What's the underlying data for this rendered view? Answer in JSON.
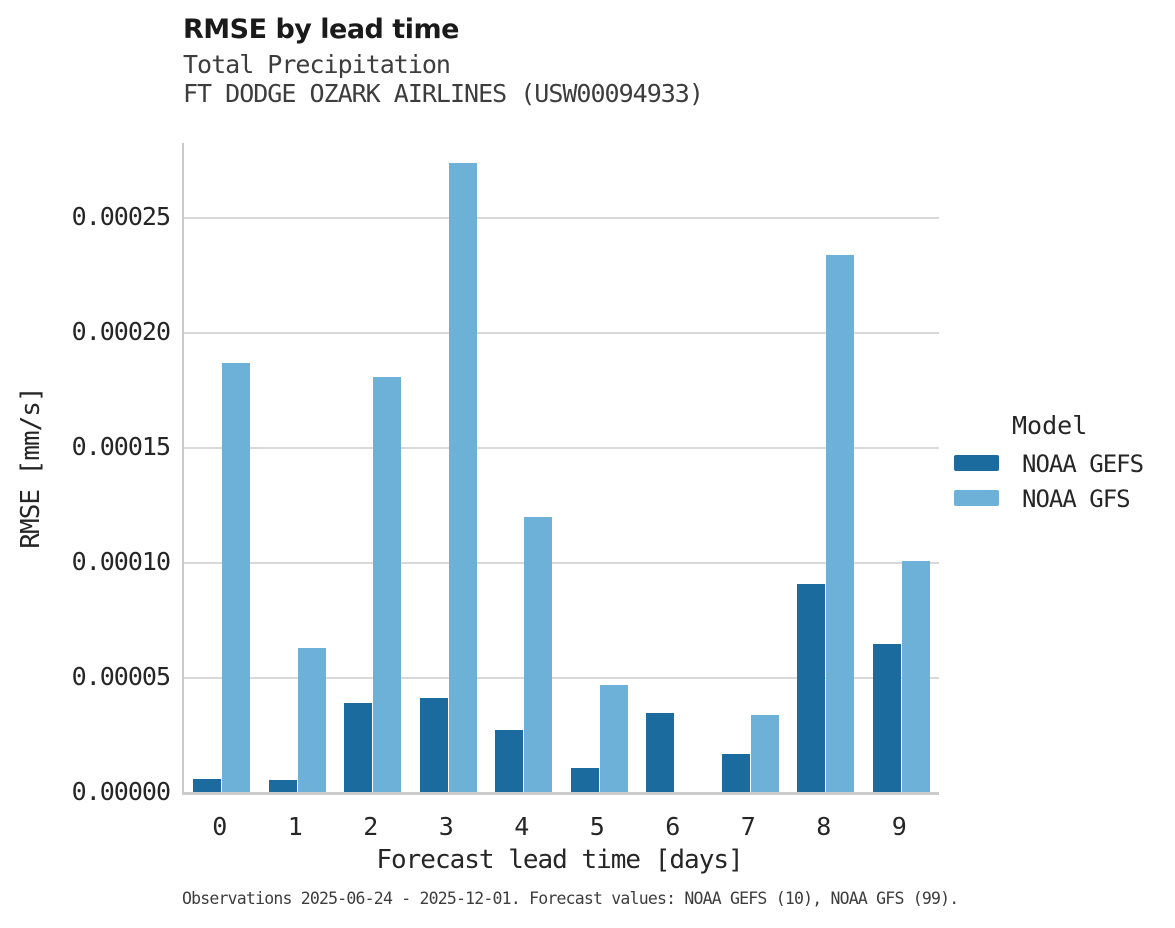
{
  "header": {
    "title": "RMSE by lead time",
    "subtitle1": "Total Precipitation",
    "subtitle2": "FT DODGE OZARK AIRLINES (USW00094933)"
  },
  "legend": {
    "title": "Model",
    "items": [
      {
        "label": "NOAA GEFS",
        "color": "#1c6b9e"
      },
      {
        "label": "NOAA GFS",
        "color": "#6db1d8"
      }
    ]
  },
  "footer": {
    "caption": "Observations 2025-06-24 - 2025-12-01. Forecast values: NOAA GEFS (10), NOAA GFS (99)."
  },
  "chart_data": {
    "type": "bar",
    "title": "RMSE by lead time",
    "subtitle": "Total Precipitation / FT DODGE OZARK AIRLINES (USW00094933)",
    "xlabel": "Forecast lead time [days]",
    "ylabel": "RMSE [mm/s]",
    "categories": [
      "0",
      "1",
      "2",
      "3",
      "4",
      "5",
      "6",
      "7",
      "8",
      "9"
    ],
    "series": [
      {
        "name": "NOAA GEFS",
        "color": "#1c6b9e",
        "values": [
          6e-06,
          5.5e-06,
          3.9e-05,
          4.15e-05,
          2.75e-05,
          1.1e-05,
          3.5e-05,
          1.7e-05,
          9.1e-05,
          6.5e-05
        ]
      },
      {
        "name": "NOAA GFS",
        "color": "#6db1d8",
        "values": [
          0.000187,
          6.3e-05,
          0.000181,
          0.000274,
          0.00012,
          4.7e-05,
          0,
          3.4e-05,
          0.000234,
          0.000101
        ]
      }
    ],
    "yticks": [
      {
        "value": 0,
        "label": "0.00000"
      },
      {
        "value": 5e-05,
        "label": "0.00005"
      },
      {
        "value": 0.0001,
        "label": "0.00010"
      },
      {
        "value": 0.00015,
        "label": "0.00015"
      },
      {
        "value": 0.0002,
        "label": "0.00020"
      },
      {
        "value": 0.00025,
        "label": "0.00025"
      }
    ],
    "ylim": [
      0,
      0.0002826
    ],
    "grid": true,
    "legend_title": "Model",
    "legend_position": "right"
  }
}
